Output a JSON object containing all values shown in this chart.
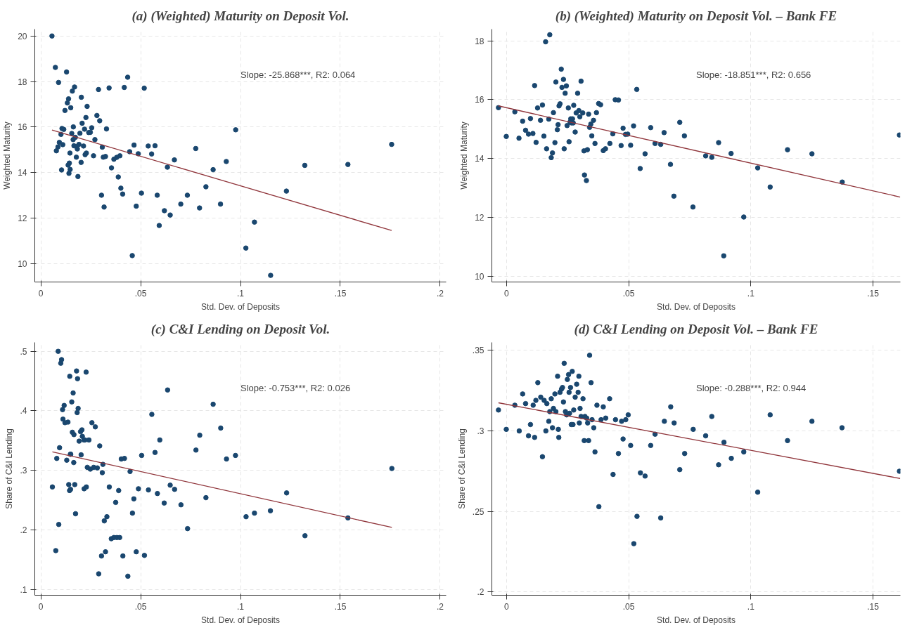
{
  "chart_data": [
    {
      "type": "scatter",
      "title": "(a) (Weighted) Maturity on Deposit Vol.",
      "xlabel": "Std. Dev. of Deposits",
      "ylabel": "Weighted Maturity",
      "xlim": [
        -0.003,
        0.203
      ],
      "ylim": [
        9.2,
        20.3
      ],
      "xticks": [
        {
          "value": 0,
          "label": "0"
        },
        {
          "value": 0.05,
          "label": ".05"
        },
        {
          "value": 0.1,
          "label": ".1"
        },
        {
          "value": 0.15,
          "label": ".15"
        },
        {
          "value": 0.2,
          "label": ".2"
        }
      ],
      "yticks": [
        10,
        12,
        14,
        16,
        18,
        20
      ],
      "grid": true,
      "annotations": [
        "Slope:  -25.868***, R2:    0.064"
      ],
      "series": [
        {
          "color": "#1a476f",
          "marker": "circle",
          "x": [
            0.0056,
            0.0073,
            0.0129,
            0.0089,
            0.0435,
            0.0169,
            0.0158,
            0.0289,
            0.0342,
            0.0418,
            0.0518,
            0.0139,
            0.0133,
            0.0203,
            0.015,
            0.0121,
            0.0232,
            0.0281,
            0.0226,
            0.0295,
            0.0207,
            0.0106,
            0.0115,
            0.0163,
            0.0219,
            0.0255,
            0.0329,
            0.024,
            0.0248,
            0.0196,
            0.0155,
            0.0101,
            0.0173,
            0.0162,
            0.0271,
            0.0093,
            0.011,
            0.0166,
            0.0191,
            0.0179,
            0.0183,
            0.0214,
            0.0086,
            0.0078,
            0.0308,
            0.0146,
            0.0228,
            0.0222,
            0.0264,
            0.0178,
            0.0313,
            0.0324,
            0.0396,
            0.038,
            0.0366,
            0.0445,
            0.0467,
            0.0488,
            0.0538,
            0.0572,
            0.0555,
            0.0776,
            0.0976,
            0.1757,
            0.0669,
            0.0634,
            0.0929,
            0.0863,
            0.1322,
            0.1538,
            0.0137,
            0.0143,
            0.0202,
            0.0147,
            0.0104,
            0.0141,
            0.0186,
            0.0354,
            0.0388,
            0.0401,
            0.041,
            0.0504,
            0.0583,
            0.0734,
            0.0827,
            0.123,
            0.0304,
            0.0317,
            0.0478,
            0.0701,
            0.0619,
            0.0648,
            0.0795,
            0.09,
            0.0593,
            0.107,
            0.0458,
            0.1027,
            0.1151
          ],
          "values": [
            20.0,
            18.62,
            18.42,
            17.96,
            18.19,
            17.76,
            17.58,
            17.65,
            17.72,
            17.74,
            17.71,
            17.24,
            17.06,
            17.31,
            16.85,
            16.73,
            16.91,
            16.51,
            16.42,
            16.28,
            16.17,
            15.94,
            15.9,
            16.01,
            15.91,
            15.97,
            15.92,
            15.76,
            15.77,
            15.73,
            15.72,
            15.68,
            15.55,
            15.45,
            15.45,
            15.33,
            15.23,
            15.18,
            15.24,
            15.15,
            15.04,
            15.17,
            15.13,
            14.96,
            15.12,
            14.86,
            14.86,
            14.79,
            14.74,
            14.68,
            14.68,
            14.71,
            14.74,
            14.67,
            14.59,
            14.92,
            15.21,
            14.83,
            15.17,
            15.18,
            14.82,
            15.06,
            15.88,
            15.24,
            14.56,
            14.24,
            14.49,
            14.13,
            14.32,
            14.36,
            14.33,
            14.42,
            14.45,
            14.14,
            14.12,
            13.97,
            13.83,
            14.21,
            13.81,
            13.32,
            13.06,
            13.1,
            13.01,
            13.01,
            13.38,
            13.19,
            13.01,
            12.49,
            12.53,
            12.62,
            12.33,
            12.14,
            12.45,
            12.62,
            11.68,
            11.83,
            10.36,
            10.69,
            9.49
          ]
        },
        {
          "type": "line",
          "color": "#90353b",
          "x": [
            0.0056,
            0.1757
          ],
          "values": [
            15.87,
            11.46
          ]
        }
      ]
    },
    {
      "type": "scatter",
      "title": "(b) (Weighted) Maturity on Deposit Vol. – Bank FE",
      "xlabel": "Std. Dev. of Deposits",
      "ylabel": "Weighted Maturity",
      "xlim": [
        -0.006,
        0.1612
      ],
      "ylim": [
        9.8,
        18.4
      ],
      "xticks": [
        {
          "value": 0,
          "label": "0"
        },
        {
          "value": 0.05,
          "label": ".05"
        },
        {
          "value": 0.1,
          "label": ".1"
        },
        {
          "value": 0.15,
          "label": ".15"
        }
      ],
      "yticks": [
        10,
        12,
        14,
        16,
        18
      ],
      "grid": true,
      "annotations": [
        "Slope:  -18.851***, R2:    0.656"
      ],
      "series": [
        {
          "color": "#1a476f",
          "marker": "circle",
          "x": [
            -0.0033,
            -0.0001,
            0.0034,
            0.0051,
            0.0066,
            0.0078,
            0.009,
            0.0098,
            0.0108,
            0.0115,
            0.0121,
            0.0127,
            0.0139,
            0.0147,
            0.0153,
            0.016,
            0.0164,
            0.0177,
            0.0173,
            0.0183,
            0.0188,
            0.0192,
            0.0198,
            0.0202,
            0.0208,
            0.0211,
            0.0215,
            0.0219,
            0.0224,
            0.0227,
            0.0233,
            0.0236,
            0.024,
            0.0245,
            0.0248,
            0.0253,
            0.0256,
            0.026,
            0.0263,
            0.0266,
            0.027,
            0.0273,
            0.0275,
            0.0281,
            0.0285,
            0.0291,
            0.0296,
            0.03,
            0.0305,
            0.0312,
            0.0317,
            0.0331,
            0.0319,
            0.0327,
            0.0336,
            0.034,
            0.0345,
            0.0349,
            0.0356,
            0.0362,
            0.0368,
            0.0377,
            0.0385,
            0.0396,
            0.0405,
            0.0423,
            0.0435,
            0.0445,
            0.0458,
            0.0469,
            0.0477,
            0.0487,
            0.0496,
            0.0508,
            0.052,
            0.0533,
            0.0547,
            0.0567,
            0.059,
            0.0608,
            0.0631,
            0.0645,
            0.0671,
            0.0685,
            0.0709,
            0.0728,
            0.0763,
            0.0815,
            0.084,
            0.0868,
            0.0889,
            0.0919,
            0.0971,
            0.1028,
            0.1079,
            0.115,
            0.125,
            0.1374,
            0.1608
          ],
          "values": [
            15.73,
            14.75,
            15.59,
            14.69,
            15.27,
            14.96,
            14.83,
            15.36,
            14.85,
            16.48,
            14.55,
            15.72,
            15.3,
            15.82,
            14.76,
            17.97,
            14.33,
            18.21,
            15.34,
            14.03,
            14.19,
            15.56,
            14.54,
            16.6,
            14.98,
            15.15,
            15.79,
            15.86,
            17.04,
            16.42,
            16.69,
            14.33,
            16.22,
            16.47,
            15.12,
            15.72,
            14.57,
            15.24,
            15.35,
            15.21,
            15.35,
            15.21,
            15.81,
            14.9,
            15.55,
            16.22,
            15.63,
            15.42,
            16.63,
            15.55,
            14.26,
            14.3,
            13.44,
            13.25,
            15.51,
            15.06,
            15.17,
            14.77,
            15.3,
            14.51,
            15.56,
            15.87,
            15.83,
            14.27,
            14.33,
            14.51,
            14.84,
            16.0,
            15.99,
            14.44,
            15.03,
            14.82,
            14.83,
            14.45,
            15.11,
            16.35,
            13.66,
            14.16,
            15.05,
            14.51,
            14.48,
            14.88,
            13.8,
            12.72,
            15.23,
            14.77,
            12.35,
            14.09,
            14.04,
            14.54,
            10.69,
            14.17,
            12.01,
            13.68,
            13.03,
            14.3,
            14.16,
            13.2,
            14.8
          ]
        },
        {
          "type": "line",
          "color": "#90353b",
          "x": [
            -0.0033,
            0.1611
          ],
          "values": [
            15.79,
            12.69
          ]
        }
      ]
    },
    {
      "type": "scatter",
      "title": "(c) C&I Lending on Deposit Vol.",
      "xlabel": "Std. Dev. of Deposits",
      "ylabel": "Share of C&I Lending",
      "xlim": [
        -0.003,
        0.203
      ],
      "ylim": [
        0.09,
        0.515
      ],
      "xticks": [
        {
          "value": 0,
          "label": "0"
        },
        {
          "value": 0.05,
          "label": ".05"
        },
        {
          "value": 0.1,
          "label": ".1"
        },
        {
          "value": 0.15,
          "label": ".15"
        },
        {
          "value": 0.2,
          "label": ".2"
        }
      ],
      "yticks": [
        {
          "value": 0.1,
          "label": ".1"
        },
        {
          "value": 0.2,
          "label": ".2"
        },
        {
          "value": 0.3,
          "label": ".3"
        },
        {
          "value": 0.4,
          "label": ".4"
        },
        {
          "value": 0.5,
          "label": ".5"
        }
      ],
      "grid": true,
      "annotations": [
        "Slope:   -0.753***, R2:    0.026"
      ],
      "series": [
        {
          "color": "#1a476f",
          "marker": "circle",
          "x": [
            0.0087,
            0.0104,
            0.01,
            0.0145,
            0.0179,
            0.0184,
            0.0227,
            0.0162,
            0.0155,
            0.0117,
            0.0187,
            0.0109,
            0.0182,
            0.0111,
            0.0121,
            0.0136,
            0.0256,
            0.0273,
            0.0158,
            0.0166,
            0.0199,
            0.0206,
            0.0208,
            0.0216,
            0.0221,
            0.0241,
            0.0192,
            0.0094,
            0.0295,
            0.015,
            0.0148,
            0.0202,
            0.008,
            0.013,
            0.0165,
            0.0233,
            0.0248,
            0.0265,
            0.0283,
            0.0311,
            0.0308,
            0.0403,
            0.0419,
            0.0447,
            0.0505,
            0.0556,
            0.0596,
            0.0572,
            0.0635,
            0.0777,
            0.0796,
            0.0863,
            0.0901,
            0.093,
            0.0975,
            0.1758,
            0.0058,
            0.014,
            0.017,
            0.0144,
            0.0149,
            0.0217,
            0.0228,
            0.0343,
            0.039,
            0.0489,
            0.0539,
            0.0584,
            0.0648,
            0.067,
            0.0375,
            0.0466,
            0.0618,
            0.0702,
            0.0827,
            0.1231,
            0.0174,
            0.0459,
            0.0331,
            0.0318,
            0.1028,
            0.107,
            0.115,
            0.1538,
            0.009,
            0.0735,
            0.0353,
            0.0366,
            0.0381,
            0.0395,
            0.1323,
            0.0075,
            0.0324,
            0.0304,
            0.0411,
            0.0478,
            0.0519,
            0.029,
            0.0436
          ],
          "values": [
            0.5,
            0.486,
            0.48,
            0.458,
            0.467,
            0.454,
            0.465,
            0.43,
            0.415,
            0.409,
            0.404,
            0.402,
            0.397,
            0.386,
            0.38,
            0.381,
            0.38,
            0.373,
            0.364,
            0.36,
            0.365,
            0.368,
            0.357,
            0.351,
            0.351,
            0.351,
            0.349,
            0.338,
            0.341,
            0.327,
            0.327,
            0.326,
            0.32,
            0.317,
            0.313,
            0.305,
            0.302,
            0.305,
            0.304,
            0.31,
            0.296,
            0.319,
            0.32,
            0.298,
            0.325,
            0.394,
            0.351,
            0.33,
            0.435,
            0.334,
            0.359,
            0.411,
            0.371,
            0.319,
            0.325,
            0.303,
            0.272,
            0.276,
            0.276,
            0.266,
            0.268,
            0.269,
            0.272,
            0.272,
            0.266,
            0.269,
            0.267,
            0.261,
            0.275,
            0.268,
            0.246,
            0.252,
            0.245,
            0.242,
            0.254,
            0.262,
            0.227,
            0.228,
            0.222,
            0.215,
            0.222,
            0.228,
            0.232,
            0.22,
            0.209,
            0.202,
            0.185,
            0.187,
            0.187,
            0.187,
            0.19,
            0.165,
            0.163,
            0.156,
            0.156,
            0.163,
            0.157,
            0.126,
            0.122
          ]
        },
        {
          "type": "line",
          "color": "#90353b",
          "x": [
            0.0058,
            0.1758
          ],
          "values": [
            0.331,
            0.204
          ]
        }
      ]
    },
    {
      "type": "scatter",
      "title": "(d) C&I Lending on Deposit Vol. – Bank FE",
      "xlabel": "Std. Dev. of Deposits",
      "ylabel": "Share of C&I Lending",
      "xlim": [
        -0.006,
        0.1612
      ],
      "ylim": [
        0.198,
        0.355
      ],
      "xticks": [
        {
          "value": 0,
          "label": "0"
        },
        {
          "value": 0.05,
          "label": ".05"
        },
        {
          "value": 0.1,
          "label": ".1"
        },
        {
          "value": 0.15,
          "label": ".15"
        }
      ],
      "yticks": [
        {
          "value": 0.2,
          "label": ".2"
        },
        {
          "value": 0.25,
          "label": ".25"
        },
        {
          "value": 0.3,
          "label": ".3"
        },
        {
          "value": 0.35,
          "label": ".35"
        }
      ],
      "grid": true,
      "annotations": [
        "Slope:   -0.288***, R2:    0.944"
      ],
      "series": [
        {
          "color": "#1a476f",
          "marker": "circle",
          "x": [
            -0.0033,
            -0.0001,
            0.0034,
            0.0052,
            0.0066,
            0.0078,
            0.009,
            0.0098,
            0.0109,
            0.0115,
            0.012,
            0.0128,
            0.014,
            0.0147,
            0.0154,
            0.0161,
            0.0165,
            0.0173,
            0.0177,
            0.0183,
            0.0188,
            0.0192,
            0.0198,
            0.0202,
            0.0209,
            0.0212,
            0.0214,
            0.0219,
            0.0225,
            0.0229,
            0.0233,
            0.0236,
            0.0241,
            0.0246,
            0.0249,
            0.0254,
            0.0256,
            0.0258,
            0.0262,
            0.0265,
            0.0269,
            0.0272,
            0.0275,
            0.0281,
            0.0287,
            0.0293,
            0.0296,
            0.0298,
            0.0301,
            0.0305,
            0.0313,
            0.0318,
            0.0321,
            0.0328,
            0.0332,
            0.0336,
            0.034,
            0.0346,
            0.035,
            0.0357,
            0.0362,
            0.037,
            0.0378,
            0.0387,
            0.0396,
            0.0406,
            0.0422,
            0.0436,
            0.0446,
            0.0458,
            0.0471,
            0.0477,
            0.0488,
            0.0498,
            0.0508,
            0.0521,
            0.0534,
            0.0548,
            0.0567,
            0.059,
            0.0608,
            0.0631,
            0.0646,
            0.0672,
            0.0686,
            0.0709,
            0.0729,
            0.0764,
            0.0815,
            0.084,
            0.0868,
            0.089,
            0.092,
            0.0971,
            0.1028,
            0.1079,
            0.115,
            0.125,
            0.1373,
            0.1608
          ],
          "values": [
            0.313,
            0.301,
            0.316,
            0.3,
            0.323,
            0.317,
            0.297,
            0.304,
            0.316,
            0.296,
            0.319,
            0.33,
            0.321,
            0.284,
            0.319,
            0.3,
            0.317,
            0.306,
            0.312,
            0.32,
            0.302,
            0.314,
            0.323,
            0.312,
            0.334,
            0.301,
            0.296,
            0.324,
            0.326,
            0.327,
            0.318,
            0.342,
            0.312,
            0.31,
            0.332,
            0.335,
            0.324,
            0.311,
            0.327,
            0.304,
            0.337,
            0.304,
            0.313,
            0.321,
            0.329,
            0.324,
            0.334,
            0.305,
            0.314,
            0.309,
            0.32,
            0.294,
            0.309,
            0.308,
            0.305,
            0.294,
            0.347,
            0.33,
            0.307,
            0.302,
            0.287,
            0.316,
            0.253,
            0.307,
            0.315,
            0.308,
            0.32,
            0.273,
            0.307,
            0.286,
            0.306,
            0.295,
            0.307,
            0.31,
            0.291,
            0.23,
            0.247,
            0.274,
            0.272,
            0.291,
            0.298,
            0.246,
            0.306,
            0.315,
            0.305,
            0.276,
            0.286,
            0.301,
            0.297,
            0.309,
            0.279,
            0.293,
            0.283,
            0.287,
            0.262,
            0.31,
            0.294,
            0.306,
            0.302,
            0.275
          ]
        },
        {
          "type": "line",
          "color": "#90353b",
          "x": [
            -0.0033,
            0.1611
          ],
          "values": [
            0.3175,
            0.2705
          ]
        }
      ]
    }
  ]
}
